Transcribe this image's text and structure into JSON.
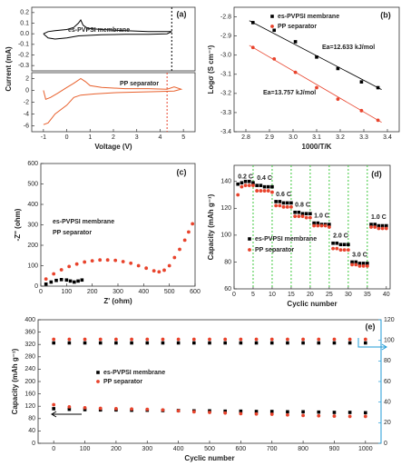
{
  "chart_data": [
    {
      "type": "line",
      "label": "(a)",
      "ylabel": "Current (mA)",
      "xlim": [
        -1.5,
        5.5
      ],
      "ylim": [
        -0.35,
        0.25
      ],
      "yticks": [
        0.2,
        0.1,
        {
          "value": 0,
          "label": "0.0"
        },
        -0.1,
        -0.2,
        -0.3
      ],
      "vlines": [
        4.5
      ],
      "vline_color": "#000000",
      "legend_markers": false,
      "series": [
        {
          "name": "es-PVPSI membrane",
          "color": "#000000",
          "x": [
            -1,
            -0.8,
            -0.5,
            0,
            0.3,
            0.5,
            0.6,
            0.7,
            0.9,
            1.5,
            2.5,
            3.5,
            4.3,
            4.5,
            4.3,
            3.5,
            2.5,
            1.5,
            0.5,
            0,
            -0.5,
            -0.8,
            -1
          ],
          "y": [
            0,
            0.02,
            0.03,
            0.04,
            0.06,
            0.1,
            0.13,
            0.08,
            0.05,
            0.04,
            0.03,
            0.02,
            0.02,
            0.02,
            0,
            -0.005,
            -0.005,
            -0.01,
            -0.02,
            -0.04,
            -0.05,
            -0.04,
            0
          ]
        }
      ]
    },
    {
      "type": "line",
      "xlabel": "Voltage (V)",
      "xlim": [
        -1.5,
        5.5
      ],
      "ylim": [
        -7,
        3
      ],
      "xticks": [
        -1,
        0,
        1,
        2,
        3,
        4,
        5
      ],
      "yticks": [
        2,
        0,
        -2,
        -4,
        -6
      ],
      "vlines": [
        4.3
      ],
      "vline_color": "#e8432c",
      "legend_markers": false,
      "series": [
        {
          "name": "PP separator",
          "color": "#e8602c",
          "x": [
            -1,
            -0.9,
            -0.7,
            -0.4,
            0,
            0.3,
            0.6,
            0.8,
            1.0,
            1.5,
            2.5,
            3.5,
            4.3,
            4.6,
            4.9,
            4.6,
            4,
            3,
            2,
            1.2,
            0.6,
            0.3,
            0,
            -0.5,
            -0.8,
            -1
          ],
          "y": [
            0,
            -1.5,
            -1.2,
            -0.5,
            0.5,
            1.2,
            2,
            1.5,
            0.8,
            0.5,
            0.3,
            0.3,
            0.2,
            0.6,
            0.2,
            -0.1,
            -0.2,
            -0.3,
            -0.4,
            -0.6,
            -0.8,
            -1.2,
            -2.5,
            -4,
            -5.5,
            -5.8
          ]
        }
      ]
    },
    {
      "type": "scatter",
      "label": "(b)",
      "xlabel": "1000/T/K",
      "ylabel": "Logσ (S cm⁻¹)",
      "fit": true,
      "legend_markers": true,
      "xlim": [
        2.75,
        3.45
      ],
      "xticks": [
        2.8,
        2.9,
        {
          "value": 3,
          "label": "3.0"
        },
        3.1,
        3.2,
        3.3,
        3.4
      ],
      "ylim": [
        -3.4,
        -2.75
      ],
      "yticks": [
        -2.8,
        -2.9,
        {
          "value": -3,
          "label": "-3.0"
        },
        -3.1,
        -3.2,
        -3.3,
        -3.4
      ],
      "series": [
        {
          "name": "es-PVPSI membrane",
          "color": "#000000",
          "marker": "square",
          "annotation": "Ea=12.633 kJ/mol",
          "x": [
            2.83,
            2.92,
            3.01,
            3.1,
            3.19,
            3.29,
            3.36
          ],
          "y": [
            -2.83,
            -2.87,
            -2.93,
            -3.01,
            -3.07,
            -3.14,
            -3.17
          ]
        },
        {
          "name": "PP separator",
          "color": "#e8432c",
          "marker": "circle",
          "annotation": "Ea=13.757 kJ/mol",
          "x": [
            2.83,
            2.92,
            3.01,
            3.1,
            3.19,
            3.29,
            3.36
          ],
          "y": [
            -2.96,
            -3.02,
            -3.09,
            -3.17,
            -3.23,
            -3.29,
            -3.34
          ]
        }
      ]
    },
    {
      "type": "scatter",
      "label": "(c)",
      "xlabel": "Z' (ohm)",
      "ylabel": "-Z'' (ohm)",
      "legend_markers": false,
      "xlim": [
        0,
        600
      ],
      "xticks": [
        0,
        100,
        200,
        300,
        400,
        500,
        600
      ],
      "ylim": [
        0,
        600
      ],
      "yticks": [
        0,
        100,
        200,
        300,
        400,
        500,
        600
      ],
      "series": [
        {
          "name": "es-PVPSI membrane",
          "color": "#000000",
          "marker": "square",
          "x": [
            20,
            40,
            60,
            80,
            100,
            115,
            130,
            145,
            160
          ],
          "y": [
            10,
            20,
            28,
            32,
            30,
            25,
            20,
            25,
            30
          ]
        },
        {
          "name": "PP separator",
          "color": "#e8432c",
          "marker": "circle",
          "x": [
            20,
            50,
            80,
            110,
            140,
            170,
            200,
            230,
            260,
            290,
            320,
            350,
            380,
            410,
            440,
            460,
            480,
            500,
            520,
            540,
            560,
            575,
            590
          ],
          "y": [
            35,
            60,
            80,
            96,
            108,
            118,
            124,
            128,
            128,
            126,
            120,
            112,
            100,
            88,
            75,
            70,
            78,
            100,
            140,
            180,
            225,
            265,
            305
          ]
        }
      ]
    },
    {
      "type": "scatter",
      "label": "(d)",
      "xlabel": "Cyclic number",
      "ylabel": "Capacity (mAh g⁻¹)",
      "legend_markers": true,
      "xlim": [
        0,
        41
      ],
      "xticks": [
        0,
        5,
        10,
        15,
        20,
        25,
        30,
        35,
        40
      ],
      "ylim": [
        60,
        152
      ],
      "yticks": [
        60,
        80,
        100,
        120,
        140
      ],
      "vlines": [
        5,
        10,
        15,
        20,
        25,
        30,
        35
      ],
      "vline_color": "#3ec93e",
      "rate_labels": [
        "0.2 C",
        "0.4 C",
        "0.6 C",
        "0.8 C",
        "1.0 C",
        "2.0 C",
        "3.0 C",
        "1.0 C"
      ],
      "series": [
        {
          "name": "es-PVPSI membrane",
          "color": "#000000",
          "marker": "square",
          "x": [
            1,
            2,
            3,
            4,
            5,
            6,
            7,
            8,
            9,
            10,
            11,
            12,
            13,
            14,
            15,
            16,
            17,
            18,
            19,
            20,
            21,
            22,
            23,
            24,
            25,
            26,
            27,
            28,
            29,
            30,
            31,
            32,
            33,
            34,
            35,
            36,
            37,
            38,
            39,
            40
          ],
          "y": [
            138,
            139,
            140,
            140,
            139,
            137,
            137,
            136,
            136,
            136,
            125,
            125,
            124,
            124,
            124,
            117,
            117,
            116,
            116,
            116,
            109,
            109,
            108,
            108,
            108,
            94,
            94,
            93,
            93,
            93,
            80,
            80,
            79,
            79,
            79,
            108,
            108,
            107,
            107,
            107
          ]
        },
        {
          "name": "PP separator",
          "color": "#e8432c",
          "marker": "circle",
          "x": [
            1,
            2,
            3,
            4,
            5,
            6,
            7,
            8,
            9,
            10,
            11,
            12,
            13,
            14,
            15,
            16,
            17,
            18,
            19,
            20,
            21,
            22,
            23,
            24,
            25,
            26,
            27,
            28,
            29,
            30,
            31,
            32,
            33,
            34,
            35,
            36,
            37,
            38,
            39,
            40
          ],
          "y": [
            130,
            136,
            137,
            137,
            137,
            133,
            133,
            133,
            133,
            132,
            122,
            122,
            121,
            121,
            121,
            114,
            114,
            114,
            113,
            113,
            107,
            107,
            107,
            107,
            106,
            90,
            90,
            89,
            89,
            89,
            78,
            78,
            77,
            77,
            77,
            106,
            106,
            105,
            105,
            105
          ]
        }
      ]
    },
    {
      "type": "scatter",
      "label": "(e)",
      "xlabel": "Cyclic number",
      "ylabel": "Capacity (mAh g⁻¹)",
      "legend_markers": true,
      "xlim": [
        -50,
        1050
      ],
      "xticks": [
        0,
        100,
        200,
        300,
        400,
        500,
        600,
        700,
        800,
        900,
        1000
      ],
      "ylim": [
        0,
        400
      ],
      "yticks": [
        0,
        40,
        80,
        120,
        160,
        200,
        240,
        280,
        320,
        360,
        400
      ],
      "y2lim": [
        0,
        120
      ],
      "y2ticks": [
        0,
        20,
        40,
        60,
        80,
        100,
        120
      ],
      "y2_color": "#1f9bd7",
      "series": [
        {
          "name": "es-PVPSI membrane",
          "color": "#000000",
          "marker": "square",
          "x": [
            0,
            50,
            100,
            150,
            200,
            250,
            300,
            350,
            400,
            450,
            500,
            550,
            600,
            650,
            700,
            750,
            800,
            850,
            900,
            950,
            1000
          ],
          "y": [
            112,
            110,
            109,
            108,
            108,
            107,
            107,
            106,
            106,
            105,
            105,
            104,
            104,
            103,
            103,
            102,
            102,
            101,
            100,
            100,
            99
          ]
        },
        {
          "name": "PP separator",
          "color": "#e8432c",
          "marker": "circle",
          "x": [
            0,
            50,
            100,
            150,
            200,
            250,
            300,
            350,
            400,
            450,
            500,
            550,
            600,
            650,
            700,
            750,
            800,
            850,
            900,
            950,
            1000
          ],
          "y": [
            125,
            118,
            115,
            113,
            112,
            111,
            110,
            108,
            105,
            102,
            100,
            98,
            96,
            95,
            94,
            92,
            90,
            89,
            88,
            87,
            87
          ]
        },
        {
          "color": "#000000",
          "marker": "square",
          "axis": "y2",
          "x": [
            0,
            50,
            100,
            150,
            200,
            250,
            300,
            350,
            400,
            450,
            500,
            550,
            600,
            650,
            700,
            750,
            800,
            850,
            900,
            950,
            1000
          ],
          "y": [
            97.5,
            97.5,
            97.5,
            97.5,
            97.5,
            97.5,
            97.5,
            97.5,
            97.5,
            97.5,
            97.5,
            97.5,
            97.5,
            97.5,
            97.5,
            97.5,
            97.5,
            97.5,
            97.5,
            97.5,
            97.5
          ]
        },
        {
          "color": "#e8432c",
          "marker": "circle",
          "axis": "y2",
          "x": [
            0,
            50,
            100,
            150,
            200,
            250,
            300,
            350,
            400,
            450,
            500,
            550,
            600,
            650,
            700,
            750,
            800,
            850,
            900,
            950,
            1000
          ],
          "y": [
            101,
            101,
            101,
            101,
            101,
            101,
            101,
            101,
            101,
            101,
            101,
            101,
            101,
            101,
            101,
            101,
            101,
            101,
            101,
            101,
            101
          ]
        }
      ]
    }
  ]
}
